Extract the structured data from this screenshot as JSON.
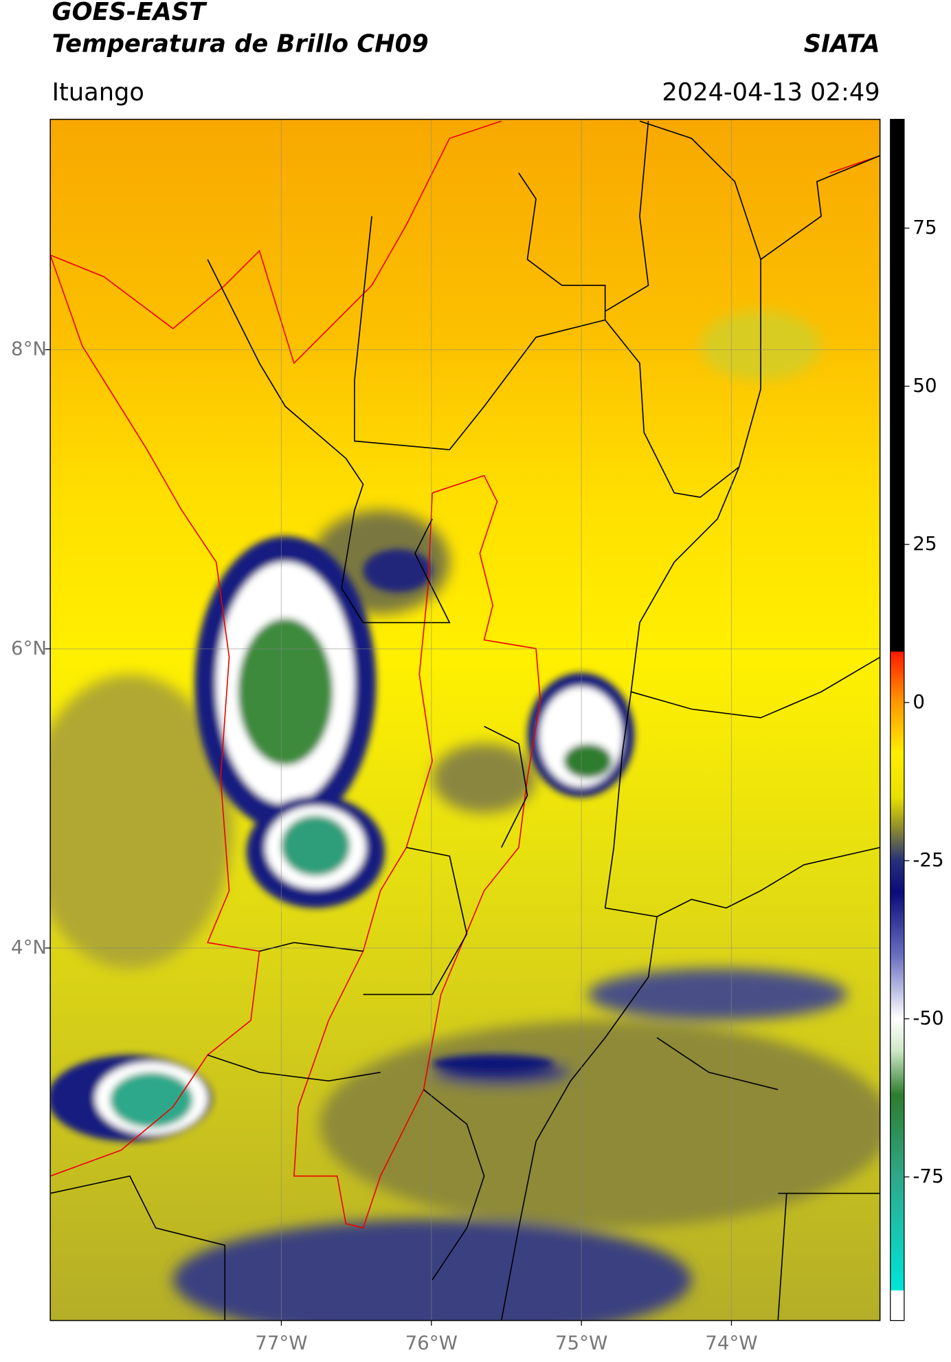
{
  "header": {
    "title": "GOES-EAST",
    "subtitle": "Temperatura de Brillo CH09",
    "source": "SIATA",
    "location": "Ituango",
    "timestamp": "2024-04-13 02:49"
  },
  "map": {
    "xlim": [
      -78.54,
      -73.01
    ],
    "ylim": [
      1.51,
      9.54
    ],
    "xticks": [
      {
        "value": -77,
        "label": "77°W"
      },
      {
        "value": -76,
        "label": "76°W"
      },
      {
        "value": -75,
        "label": "75°W"
      },
      {
        "value": -74,
        "label": "74°W"
      }
    ],
    "yticks": [
      {
        "value": 8,
        "label": "8°N"
      },
      {
        "value": 6,
        "label": "6°N"
      },
      {
        "value": 4,
        "label": "4°N"
      }
    ],
    "grid": true
  },
  "colorbar": {
    "lim": [
      -97.7,
      92.2
    ],
    "ticks": [
      -75,
      -50,
      -25,
      0,
      25,
      50,
      75
    ],
    "stops": [
      {
        "value": -97.7,
        "color": "#ffffff"
      },
      {
        "value": -93,
        "color": "#ffffff"
      },
      {
        "value": -92.9,
        "color": "#00e5d8"
      },
      {
        "value": -75,
        "color": "#2fa88a"
      },
      {
        "value": -62,
        "color": "#2e7d2e"
      },
      {
        "value": -55,
        "color": "#cfe8c8"
      },
      {
        "value": -50,
        "color": "#ffffff"
      },
      {
        "value": -40,
        "color": "#6a6fc0"
      },
      {
        "value": -30,
        "color": "#0b0b7a"
      },
      {
        "value": -25,
        "color": "#26307a"
      },
      {
        "value": -20,
        "color": "#8a8a30"
      },
      {
        "value": -15,
        "color": "#e8e000"
      },
      {
        "value": -8,
        "color": "#ffee00"
      },
      {
        "value": 0,
        "color": "#ff9900"
      },
      {
        "value": 8,
        "color": "#ff1a00"
      },
      {
        "value": 8.1,
        "color": "#000000"
      },
      {
        "value": 92.2,
        "color": "#000000"
      }
    ]
  }
}
